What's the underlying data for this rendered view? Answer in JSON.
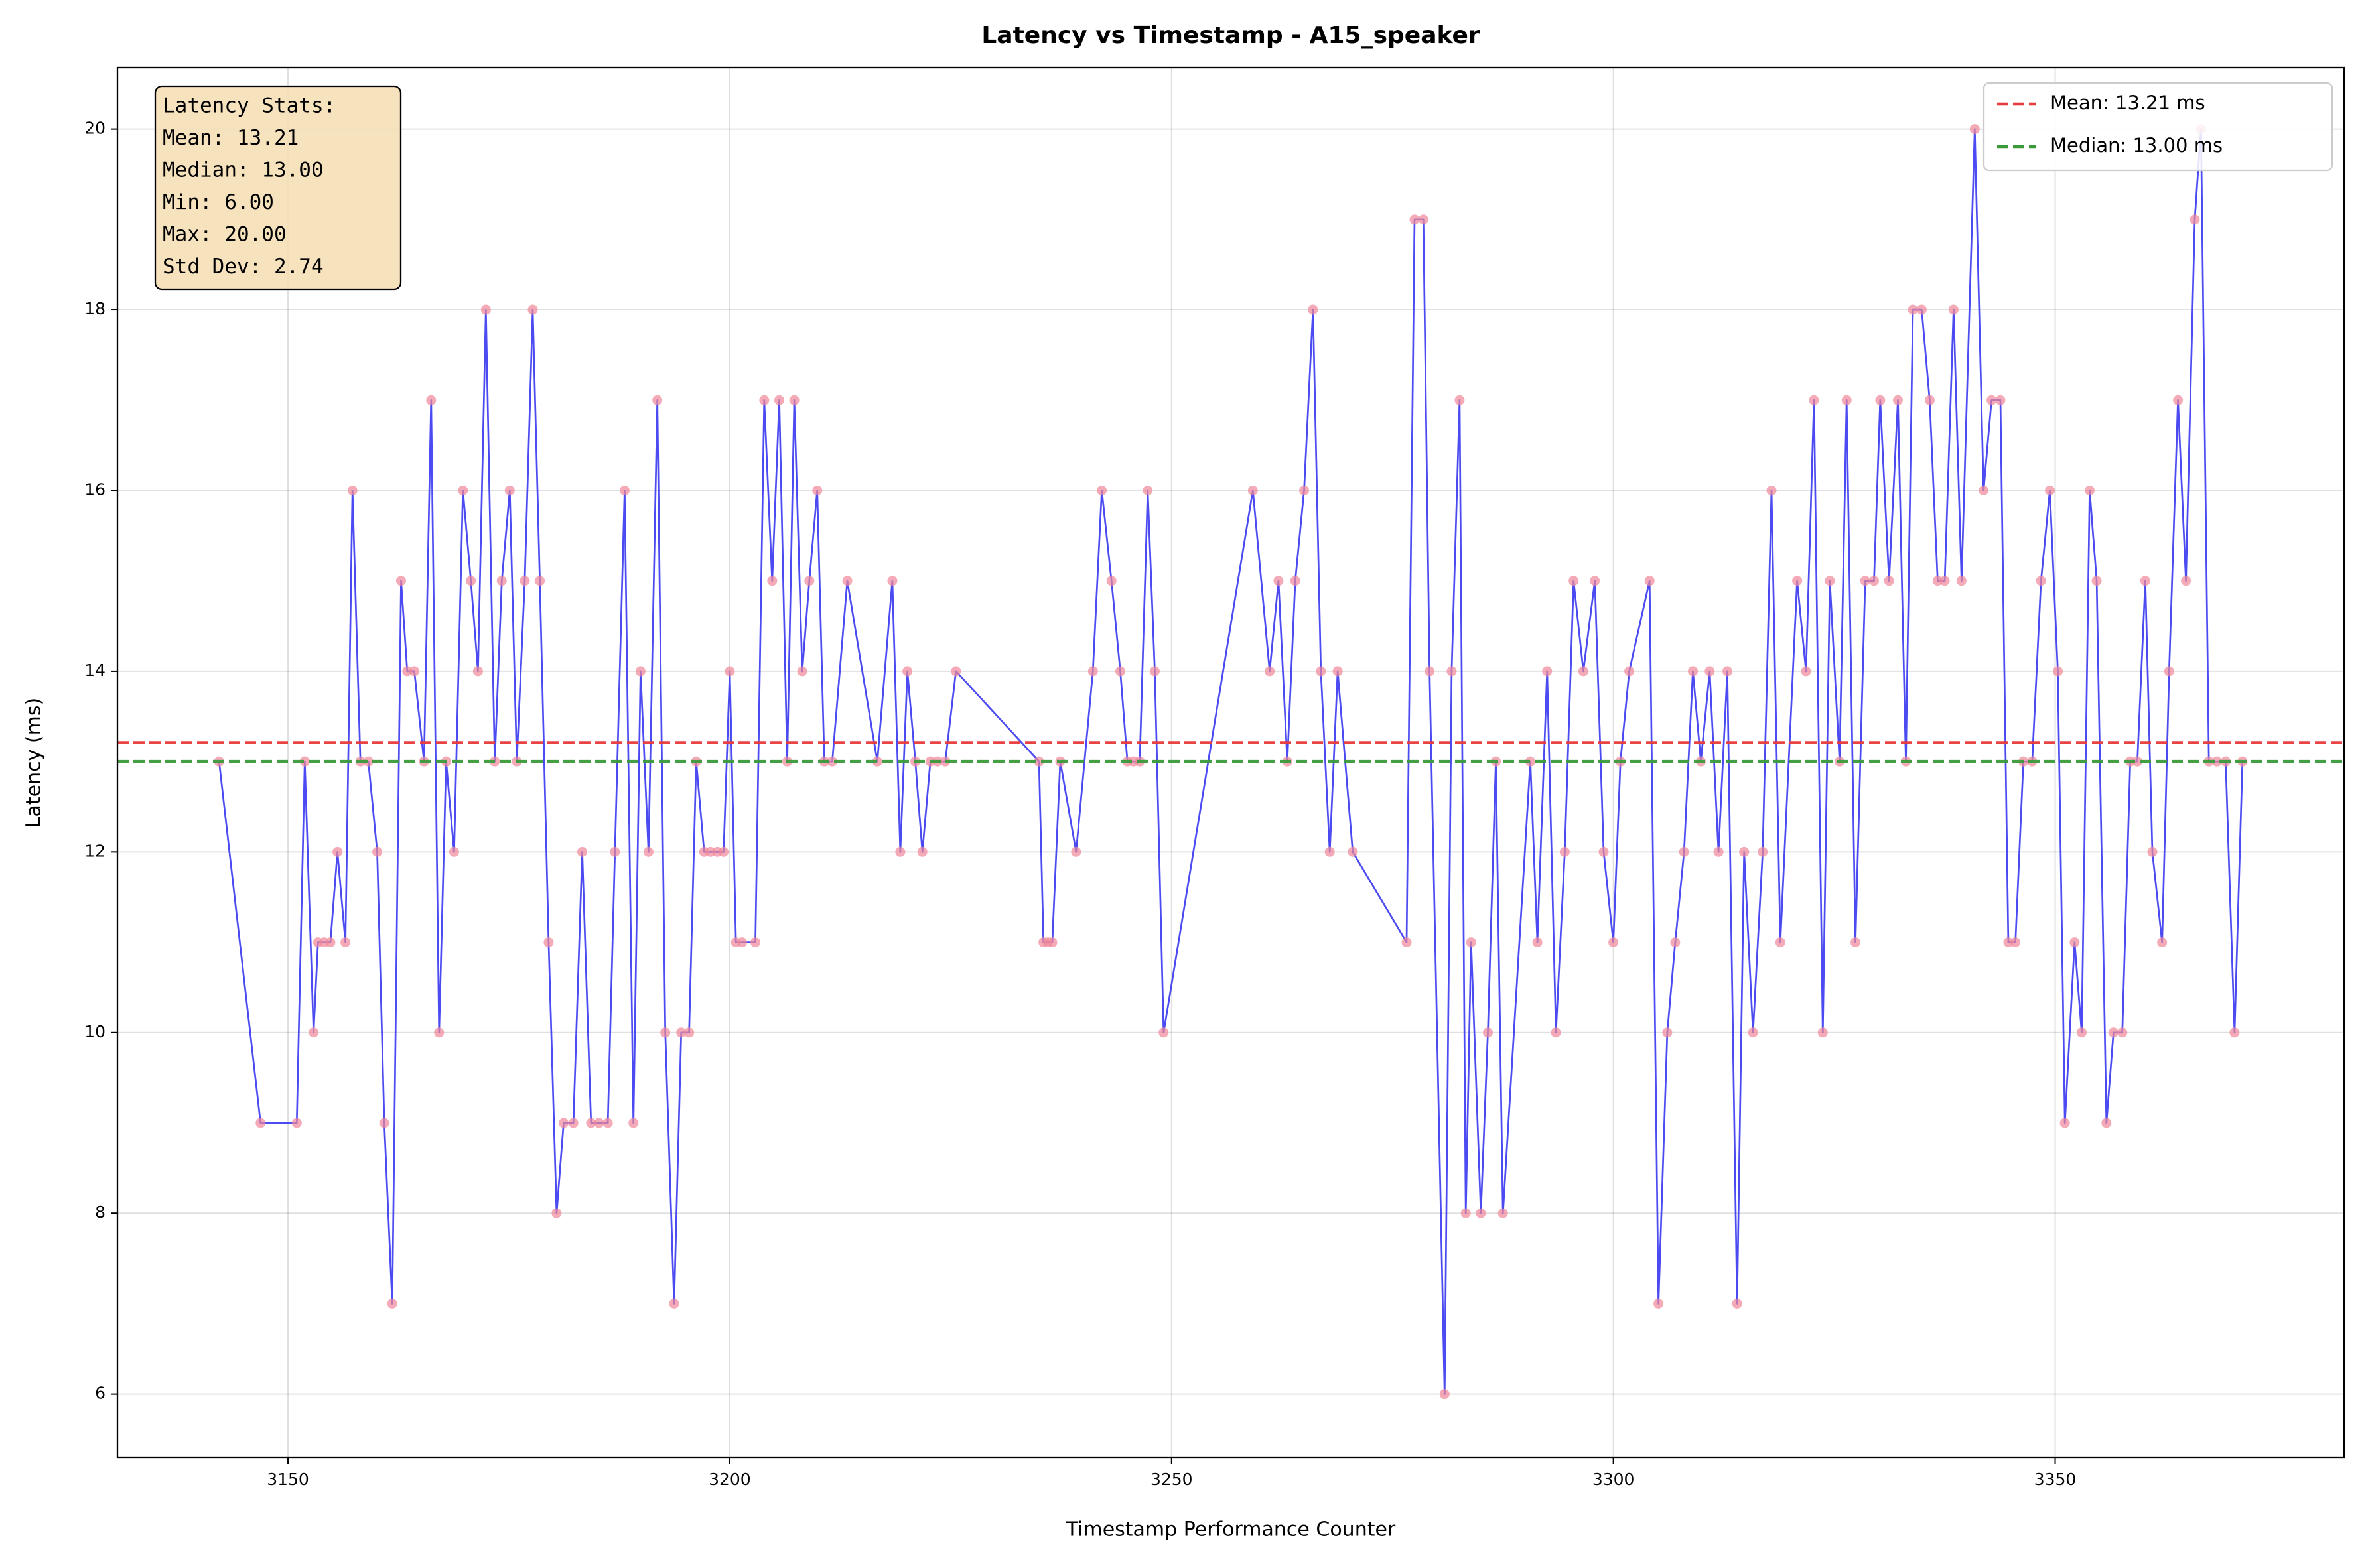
{
  "chart_data": {
    "type": "line",
    "title": "Latency vs Timestamp - A15_speaker",
    "xlabel": "Timestamp Performance Counter",
    "ylabel": "Latency (ms)",
    "x": [
      3142.2,
      3146.9,
      3151.0,
      3151.9,
      3152.9,
      3153.4,
      3154.1,
      3154.8,
      3155.6,
      3156.5,
      3157.3,
      3158.2,
      3159.1,
      3160.1,
      3160.9,
      3161.8,
      3162.8,
      3163.5,
      3164.3,
      3165.4,
      3166.2,
      3167.1,
      3167.9,
      3168.8,
      3169.8,
      3170.7,
      3171.5,
      3172.4,
      3173.4,
      3174.2,
      3175.1,
      3175.9,
      3176.8,
      3177.7,
      3178.5,
      3179.5,
      3180.4,
      3181.2,
      3182.3,
      3183.3,
      3184.3,
      3185.2,
      3186.2,
      3187.0,
      3188.1,
      3189.1,
      3189.9,
      3190.8,
      3191.8,
      3192.7,
      3193.7,
      3194.5,
      3195.4,
      3196.2,
      3197.1,
      3197.8,
      3198.6,
      3199.3,
      3200.0,
      3200.7,
      3201.4,
      3202.9,
      3203.9,
      3204.8,
      3205.6,
      3206.5,
      3207.3,
      3208.2,
      3209.0,
      3209.9,
      3210.7,
      3211.6,
      3213.3,
      3216.7,
      3218.4,
      3219.3,
      3220.1,
      3221.0,
      3221.8,
      3222.7,
      3223.5,
      3224.4,
      3225.6,
      3235.0,
      3235.5,
      3236.0,
      3236.5,
      3237.4,
      3239.2,
      3241.1,
      3242.1,
      3243.2,
      3244.2,
      3245.0,
      3245.7,
      3246.4,
      3247.3,
      3248.1,
      3249.1,
      3259.2,
      3261.1,
      3262.1,
      3263.1,
      3264.0,
      3265.0,
      3266.0,
      3266.9,
      3267.9,
      3268.8,
      3270.5,
      3276.6,
      3277.5,
      3278.5,
      3279.2,
      3280.9,
      3281.7,
      3282.6,
      3283.3,
      3283.9,
      3285.0,
      3285.8,
      3286.7,
      3287.5,
      3290.6,
      3291.4,
      3292.5,
      3293.5,
      3294.5,
      3295.5,
      3296.6,
      3297.9,
      3298.9,
      3300.0,
      3300.8,
      3301.8,
      3304.1,
      3305.1,
      3306.1,
      3307.0,
      3308.0,
      3309.0,
      3309.9,
      3310.9,
      3311.9,
      3312.9,
      3314.0,
      3314.8,
      3315.8,
      3316.9,
      3317.9,
      3318.9,
      3320.8,
      3321.8,
      3322.7,
      3323.7,
      3324.5,
      3325.6,
      3326.4,
      3327.4,
      3328.5,
      3329.5,
      3330.2,
      3331.2,
      3332.2,
      3333.1,
      3333.9,
      3334.9,
      3335.8,
      3336.7,
      3337.5,
      3338.5,
      3339.4,
      3340.9,
      3341.9,
      3342.8,
      3343.8,
      3344.7,
      3345.5,
      3346.4,
      3347.4,
      3348.4,
      3349.4,
      3350.3,
      3351.1,
      3352.2,
      3353.0,
      3353.9,
      3354.7,
      3355.8,
      3356.6,
      3357.6,
      3358.5,
      3359.3,
      3360.2,
      3361.0,
      3362.1,
      3362.9,
      3363.9,
      3364.8,
      3365.8,
      3366.5,
      3367.4,
      3368.3,
      3369.3,
      3370.3,
      3371.2
    ],
    "series": [
      {
        "color": "#2b2bee",
        "marker_color": "#f08898",
        "values": [
          13,
          9,
          9,
          13,
          10,
          11,
          11,
          11,
          12,
          11,
          16,
          13,
          13,
          12,
          9,
          7,
          15,
          14,
          14,
          13,
          17,
          10,
          13,
          12,
          16,
          15,
          14,
          18,
          13,
          15,
          16,
          13,
          15,
          18,
          15,
          11,
          8,
          9,
          9,
          12,
          9,
          9,
          9,
          12,
          16,
          9,
          14,
          12,
          17,
          10,
          7,
          10,
          10,
          13,
          12,
          12,
          12,
          12,
          14,
          11,
          11,
          11,
          17,
          15,
          17,
          13,
          17,
          14,
          15,
          16,
          13,
          13,
          15,
          13,
          15,
          12,
          14,
          13,
          12,
          13,
          13,
          13,
          14,
          13,
          11,
          11,
          11,
          13,
          12,
          14,
          16,
          15,
          14,
          13,
          13,
          13,
          16,
          14,
          10,
          16,
          14,
          15,
          13,
          15,
          16,
          18,
          14,
          12,
          14,
          12,
          11,
          19,
          19,
          14,
          6,
          14,
          17,
          8,
          11,
          8,
          10,
          13,
          8,
          13,
          11,
          14,
          10,
          12,
          15,
          14,
          15,
          12,
          11,
          13,
          14,
          15,
          7,
          10,
          11,
          12,
          14,
          13,
          14,
          12,
          14,
          7,
          12,
          10,
          12,
          16,
          11,
          15,
          14,
          17,
          10,
          15,
          13,
          17,
          11,
          15,
          15,
          17,
          15,
          17,
          13,
          18,
          18,
          17,
          15,
          15,
          18,
          15,
          20,
          16,
          17,
          17,
          11,
          11,
          13,
          13,
          15,
          16,
          14,
          9,
          11,
          10,
          16,
          15,
          9,
          10,
          10,
          13,
          13,
          15,
          12,
          11,
          14,
          17,
          15,
          19,
          20,
          13,
          13,
          13,
          10,
          13
        ]
      }
    ],
    "hlines": [
      {
        "name": "Mean: 13.21 ms",
        "value": 13.21,
        "color": "#e83a3a"
      },
      {
        "name": "Median: 13.00 ms",
        "value": 13.0,
        "color": "#3a9a3a"
      }
    ],
    "annotation": [
      "Latency Stats:",
      "Mean: 13.21",
      "Median: 13.00",
      "Min: 6.00",
      "Max: 20.00",
      "Std Dev: 2.74"
    ],
    "xlim": [
      3130.7,
      3382.7
    ],
    "ylim": [
      5.3,
      20.68
    ],
    "xticks": [
      3150,
      3200,
      3250,
      3300,
      3350
    ],
    "yticks": [
      6,
      8,
      10,
      12,
      14,
      16,
      18,
      20
    ],
    "grid": true,
    "legend": "upper right"
  }
}
